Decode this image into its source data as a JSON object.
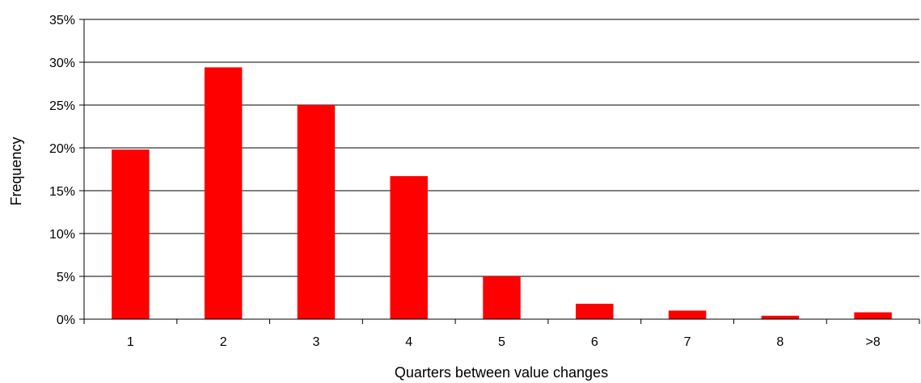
{
  "chart_data": {
    "type": "bar",
    "xlabel": "Quarters between value changes",
    "ylabel": "Frequency",
    "categories": [
      "1",
      "2",
      "3",
      "4",
      "5",
      "6",
      "7",
      "8",
      ">8"
    ],
    "values": [
      19.8,
      29.4,
      25.0,
      16.7,
      5.0,
      1.8,
      1.0,
      0.4,
      0.8
    ],
    "ylim": [
      0,
      35
    ],
    "yticks": [
      0,
      5,
      10,
      15,
      20,
      25,
      30,
      35
    ],
    "ytick_labels": [
      "0%",
      "5%",
      "10%",
      "15%",
      "20%",
      "25%",
      "30%",
      "35%"
    ],
    "grid": true,
    "bar_color": "#ff0000"
  }
}
